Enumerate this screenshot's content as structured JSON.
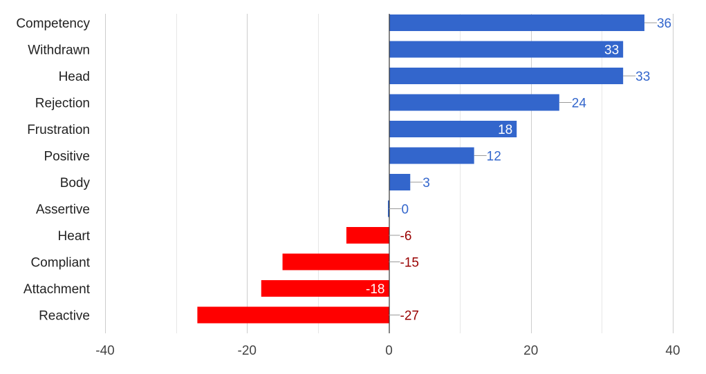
{
  "chart_data": {
    "type": "bar",
    "orientation": "horizontal",
    "categories": [
      "Competency",
      "Withdrawn",
      "Head",
      "Rejection",
      "Frustration",
      "Positive",
      "Body",
      "Assertive",
      "Heart",
      "Compliant",
      "Attachment",
      "Reactive"
    ],
    "values": [
      36,
      33,
      33,
      24,
      18,
      12,
      3,
      0,
      -6,
      -15,
      -18,
      -27
    ],
    "data_labels": [
      "36",
      "33",
      "33",
      "24",
      "18",
      "12",
      "3",
      "0",
      "-6",
      "-15",
      "-18",
      "-27"
    ],
    "x_ticks": [
      "-40",
      "-20",
      "0",
      "20",
      "40"
    ],
    "xlim": [
      -40,
      40
    ],
    "grid": true,
    "colors": {
      "positive": "#3366cc",
      "negative": "#ff0000",
      "positive_label": "#3366cc",
      "negative_label": "#990000",
      "inside_label": "#ffffff",
      "grid_major": "#cccccc",
      "grid_minor": "#e6e6e6",
      "baseline": "#333333"
    }
  }
}
